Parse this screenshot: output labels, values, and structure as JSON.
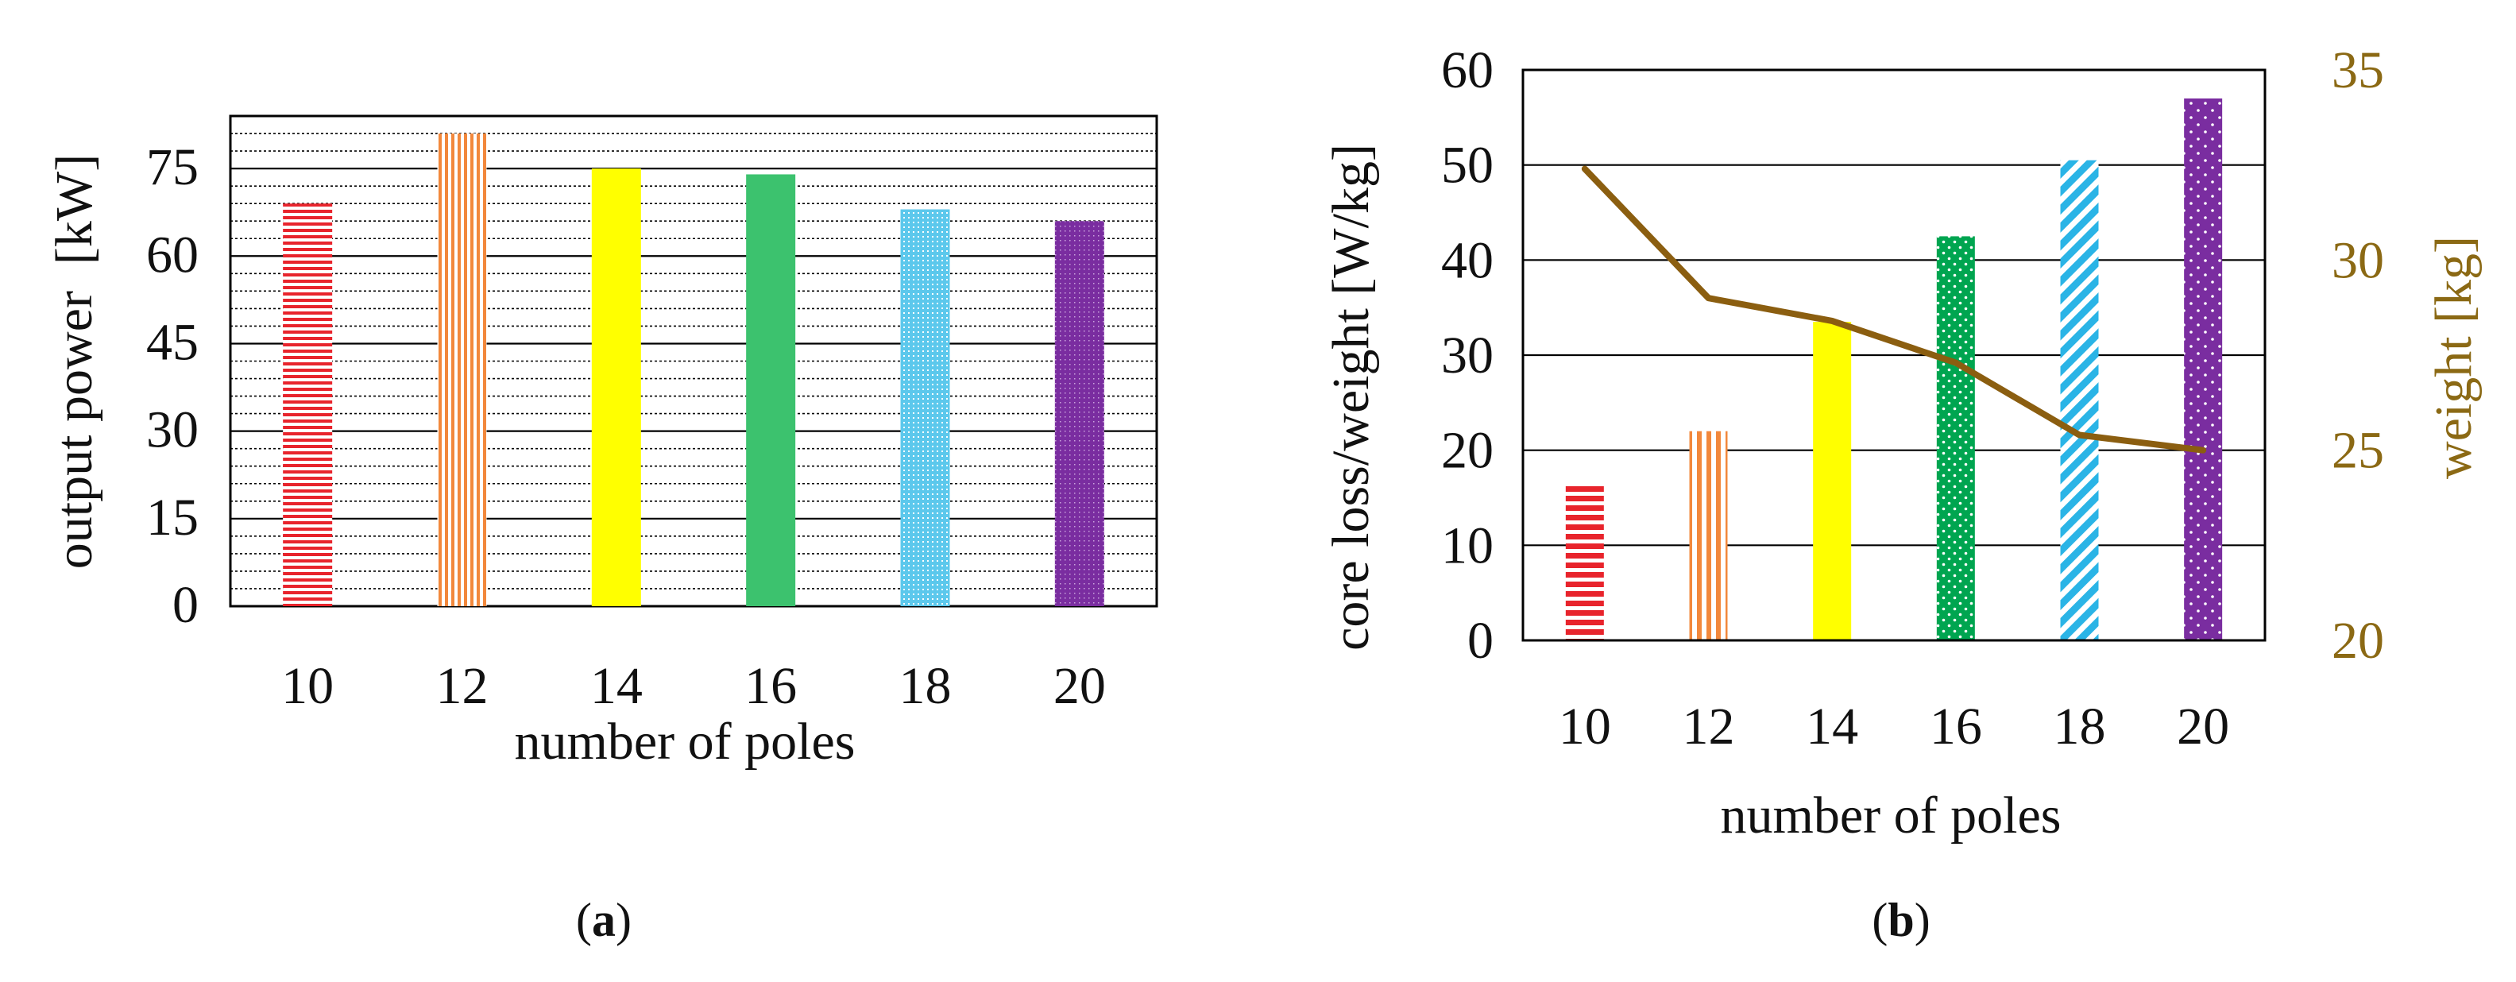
{
  "colors": {
    "bars": [
      "#e8242c",
      "#f2883c",
      "#ffff00",
      "#00a550",
      "#2ab4e6",
      "#7a2da0"
    ],
    "line": "#8b5e10",
    "right_axis_text": "#8b6914",
    "gridline": "#000000"
  },
  "chart_data": [
    {
      "type": "bar",
      "caption": "a",
      "title": "",
      "xlabel": "number of poles",
      "ylabel": "output power  [kW]",
      "categories": [
        "10",
        "12",
        "14",
        "16",
        "18",
        "20"
      ],
      "values": [
        69,
        81,
        75,
        74,
        68,
        66
      ],
      "ylim": [
        0,
        84
      ],
      "yticks": [
        0,
        15,
        30,
        45,
        60,
        75
      ],
      "grid_minor_step": 3,
      "grid": true
    },
    {
      "type": "bar",
      "caption": "b",
      "title": "",
      "xlabel": "number of poles",
      "ylabel": "core loss/weight [W/kg]",
      "categories": [
        "10",
        "12",
        "14",
        "16",
        "18",
        "20"
      ],
      "values": [
        16.5,
        22,
        33.5,
        42.5,
        50.5,
        57
      ],
      "ylim": [
        0,
        60
      ],
      "yticks": [
        0,
        10,
        20,
        30,
        40,
        50,
        60
      ],
      "grid": true,
      "line_series": {
        "name": "weight",
        "axis": "right",
        "ylabel": "weight [kg]",
        "values": [
          32.4,
          29.0,
          28.4,
          27.3,
          25.4,
          25.0
        ],
        "ylim": [
          20,
          35
        ],
        "yticks": [
          20,
          25,
          30,
          35
        ]
      }
    }
  ]
}
